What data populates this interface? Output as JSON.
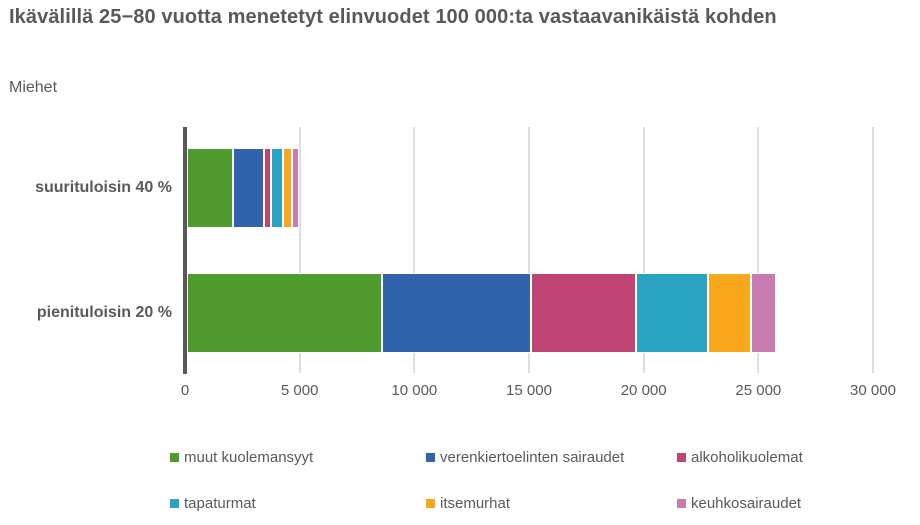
{
  "title": "Ikävälillä 25−80 vuotta menetetyt elinvuodet 100 000:ta vastaavanikäistä kohden",
  "subtitle": "Miehet",
  "colors": {
    "axis": "#595959",
    "gridline": "#dadfe2",
    "text": "#595959"
  },
  "chart_data": {
    "type": "bar",
    "orientation": "horizontal",
    "stacked": true,
    "title": "Ikävälillä 25−80 vuotta menetetyt elinvuodet 100 000:ta vastaavanikäistä kohden",
    "subtitle": "Miehet",
    "categories": [
      "suurituloisin 40 %",
      "pienituloisin 20 %"
    ],
    "series": [
      {
        "name": "muut kuolemansyyt",
        "color": "#4f9b2e",
        "values": [
          2000,
          8500
        ]
      },
      {
        "name": "verenkiertoelinten sairaudet",
        "color": "#3162ac",
        "values": [
          1350,
          6500
        ]
      },
      {
        "name": "alkoholikuolemat",
        "color": "#bf4373",
        "values": [
          320,
          4600
        ]
      },
      {
        "name": "tapaturmat",
        "color": "#2aa3c2",
        "values": [
          500,
          3100
        ]
      },
      {
        "name": "itsemurhat",
        "color": "#f9a81b",
        "values": [
          420,
          1900
        ]
      },
      {
        "name": "keuhkosairaudet",
        "color": "#c77bb0",
        "values": [
          300,
          1100
        ]
      }
    ],
    "xlim": [
      0,
      30000
    ],
    "x_ticks": [
      "0",
      "5 000",
      "10 000",
      "15 000",
      "20 000",
      "25 000",
      "30 000"
    ],
    "x_tick_values": [
      0,
      5000,
      10000,
      15000,
      20000,
      25000,
      30000
    ],
    "grid": true,
    "legend_position": "bottom"
  }
}
